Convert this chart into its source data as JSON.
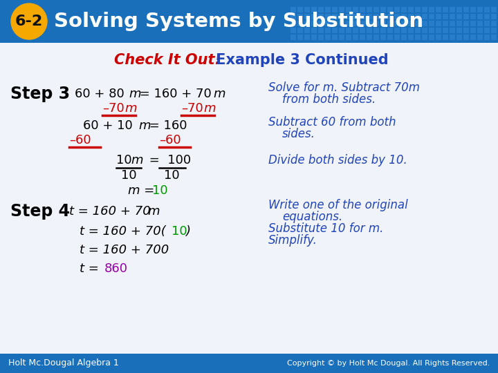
{
  "title_badge": "6-2",
  "title_text": "Solving Systems by Substitution",
  "header_bg_color": "#1a6fbb",
  "title_badge_bg": "#f5a800",
  "subtitle_red": "Check It Out!",
  "subtitle_blue": " Example 3 Continued",
  "footer_text_left": "Holt Mc.Dougal Algebra 1",
  "footer_text_right": "Copyright © by Holt Mc Dougal. All Rights Reserved.",
  "footer_bg": "#1a6fbb",
  "bg_color": "#f0f4fa",
  "body_text_color": "#000000",
  "blue_color": "#2244bb",
  "red_color": "#cc0000",
  "green_color": "#009900",
  "purple_color": "#9900aa"
}
